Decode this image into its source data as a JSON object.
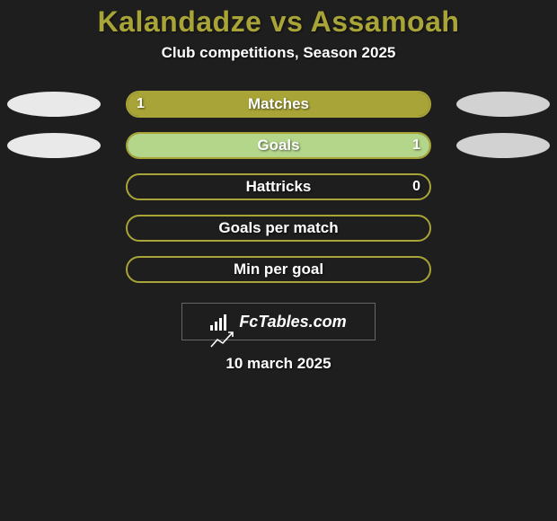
{
  "header": {
    "title": "Kalandadze vs Assamoah",
    "title_fontsize": 32,
    "title_color": "#a8a437",
    "subtitle": "Club competitions, Season 2025",
    "subtitle_fontsize": 17,
    "subtitle_color": "#ffffff"
  },
  "chart": {
    "background_color": "#1e1e1e",
    "bar_border_color": "#a8a437",
    "fill_color_left": "#a8a437",
    "fill_color_right": "#b4d68a",
    "ellipse_colors": {
      "left_top": "#e9e9e9",
      "left_bottom": "#e9e9e9",
      "right_top": "#d2d2d2",
      "right_bottom": "#d2d2d2"
    },
    "rows": [
      {
        "label": "Matches",
        "left_value": "1",
        "right_value": "",
        "left_fill_pct": 100,
        "right_fill_pct": 0,
        "show_left_ellipse": true,
        "show_right_ellipse": true
      },
      {
        "label": "Goals",
        "left_value": "",
        "right_value": "1",
        "left_fill_pct": 0,
        "right_fill_pct": 100,
        "show_left_ellipse": true,
        "show_right_ellipse": true
      },
      {
        "label": "Hattricks",
        "left_value": "",
        "right_value": "0",
        "left_fill_pct": 0,
        "right_fill_pct": 0,
        "show_left_ellipse": false,
        "show_right_ellipse": false
      },
      {
        "label": "Goals per match",
        "left_value": "",
        "right_value": "",
        "left_fill_pct": 0,
        "right_fill_pct": 0,
        "show_left_ellipse": false,
        "show_right_ellipse": false
      },
      {
        "label": "Min per goal",
        "left_value": "",
        "right_value": "",
        "left_fill_pct": 0,
        "right_fill_pct": 0,
        "show_left_ellipse": false,
        "show_right_ellipse": false
      }
    ]
  },
  "brand": {
    "text": "FcTables.com",
    "background_color": "#1e1e1e",
    "border_color": "#666666"
  },
  "footer": {
    "date": "10 march 2025"
  }
}
